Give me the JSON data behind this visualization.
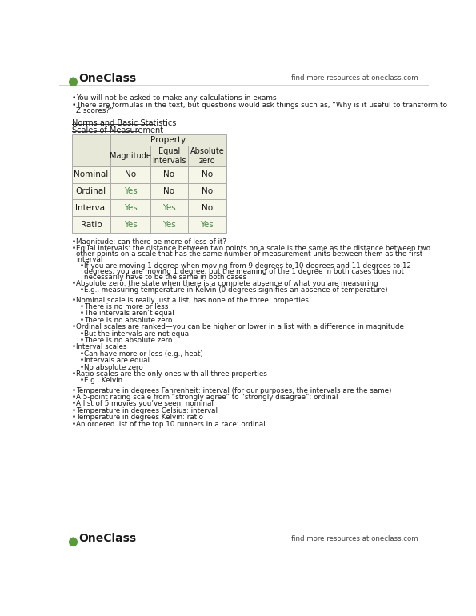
{
  "bg_color": "#ffffff",
  "header_bg": "#e8e8d8",
  "cell_bg": "#f5f5e8",
  "border_color": "#aaaaaa",
  "green_color": "#4a8a4a",
  "black_color": "#1a1a1a",
  "logo_green": "#5a9a3a",
  "header_top": "Norms and Basic Statistics",
  "header_sub": "Scales of Measurement",
  "table_property_header": "Property",
  "table_col_headers": [
    "Magnitude",
    "Equal\nintervals",
    "Absolute\nzero"
  ],
  "table_rows": [
    [
      "Nominal",
      "No",
      "No",
      "No"
    ],
    [
      "Ordinal",
      "Yes",
      "No",
      "No"
    ],
    [
      "Interval",
      "Yes",
      "Yes",
      "No"
    ],
    [
      "Ratio",
      "Yes",
      "Yes",
      "Yes"
    ]
  ],
  "row_green_cols": [
    [
      false,
      false,
      false,
      false
    ],
    [
      false,
      true,
      false,
      false
    ],
    [
      false,
      true,
      true,
      false
    ],
    [
      false,
      true,
      true,
      true
    ]
  ],
  "top_bullets": [
    {
      "level": 0,
      "text": "You will not be asked to make any calculations in exams"
    },
    {
      "level": 0,
      "text": "There are formulas in the text, but questions would ask things such as, “Why is it useful to transform to\nZ scores?”"
    }
  ],
  "after_table_bullets": [
    {
      "level": 0,
      "text": "Magnitude: can there be more of less of it?"
    },
    {
      "level": 0,
      "text": "Equal intervals: the distance between two points on a scale is the same as the distance between two\nother points on a scale that has the same number of measurement units between them as the first\ninterval"
    },
    {
      "level": 1,
      "text": "If you are moving 1 degree when moving from 9 degrees to 10 degrees and 11 degrees to 12\ndegrees, you are moving 1 degree, but the meaning of the 1 degree in both cases does not\nnecessarily have to be the same in both cases"
    },
    {
      "level": 0,
      "text": "Absolute zero: the state when there is a complete absence of what you are measuring"
    },
    {
      "level": 1,
      "text": "E.g., measuring temperature in Kelvin (0 degrees signifies an absence of temperature)"
    },
    {
      "level": 0,
      "text": ""
    },
    {
      "level": 0,
      "text": "Nominal scale is really just a list; has none of the three  properties"
    },
    {
      "level": 1,
      "text": "There is no more or less"
    },
    {
      "level": 1,
      "text": "The intervals aren’t equal"
    },
    {
      "level": 1,
      "text": "There is no absolute zero"
    },
    {
      "level": 0,
      "text": "Ordinal scales are ranked—you can be higher or lower in a list with a difference in magnitude"
    },
    {
      "level": 1,
      "text": "But the intervals are not equal"
    },
    {
      "level": 1,
      "text": "There is no absolute zero"
    },
    {
      "level": 0,
      "text": "Interval scales"
    },
    {
      "level": 1,
      "text": "Can have more or less (e.g., heat)"
    },
    {
      "level": 1,
      "text": "Intervals are equal"
    },
    {
      "level": 1,
      "text": "No absolute zero"
    },
    {
      "level": 0,
      "text": "Ratio scales are the only ones with all three properties"
    },
    {
      "level": 1,
      "text": "E.g., Kelvin"
    },
    {
      "level": 0,
      "text": ""
    },
    {
      "level": 0,
      "text": "Temperature in degrees Fahrenheit: interval (for our purposes, the intervals are the same)"
    },
    {
      "level": 0,
      "text": "A 5-point rating scale from “strongly agree” to “strongly disagree”: ordinal"
    },
    {
      "level": 0,
      "text": "A list of 5 movies you’ve seen: nominal"
    },
    {
      "level": 0,
      "text": "Temperature in degrees Celsius: interval"
    },
    {
      "level": 0,
      "text": "Temperature in degrees Kelvin: ratio"
    },
    {
      "level": 0,
      "text": "An ordered list of the top 10 runners in a race: ordinal"
    }
  ]
}
